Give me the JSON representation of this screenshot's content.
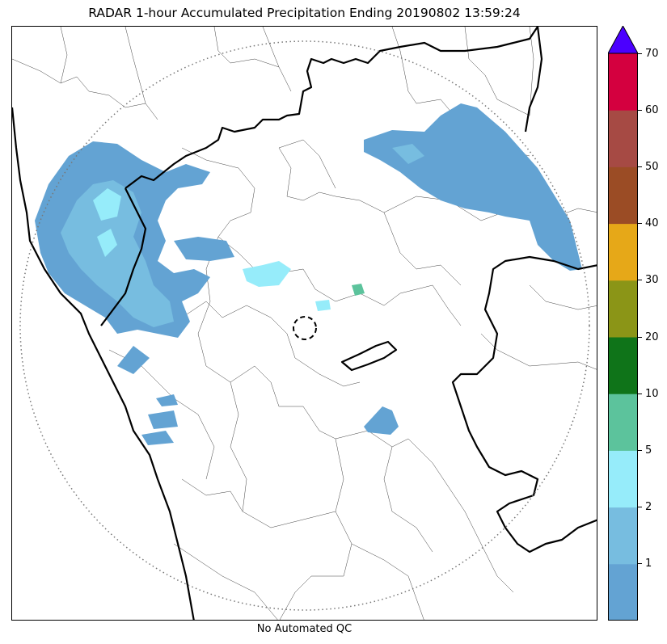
{
  "title": "RADAR 1-hour Accumulated Precipitation Ending 20190802 13:59:24",
  "footer": "No Automated QC",
  "colorbar": {
    "ticks": [
      "1",
      "2",
      "5",
      "10",
      "20",
      "30",
      "40",
      "50",
      "60",
      "70"
    ],
    "bins": [
      {
        "range": "0-1",
        "color": "#63a3d3"
      },
      {
        "range": "1-2",
        "color": "#77bde0"
      },
      {
        "range": "2-5",
        "color": "#96ecfa"
      },
      {
        "range": "5-10",
        "color": "#5cc39c"
      },
      {
        "range": "10-20",
        "color": "#0f7419"
      },
      {
        "range": "20-30",
        "color": "#8b9517"
      },
      {
        "range": "30-40",
        "color": "#e6a818"
      },
      {
        "range": "40-50",
        "color": "#9b4c25"
      },
      {
        "range": "50-60",
        "color": "#a64a44"
      },
      {
        "range": "60-70",
        "color": "#d4003f"
      }
    ],
    "overflow_color": "#4b00ff",
    "overflow_shape": "triangle"
  },
  "map": {
    "range_ring_style": "dotted-gray",
    "radar_marker_style": "dashed-black-circle",
    "boundaries": [
      "coastline",
      "state-boundaries",
      "district-boundaries"
    ]
  }
}
